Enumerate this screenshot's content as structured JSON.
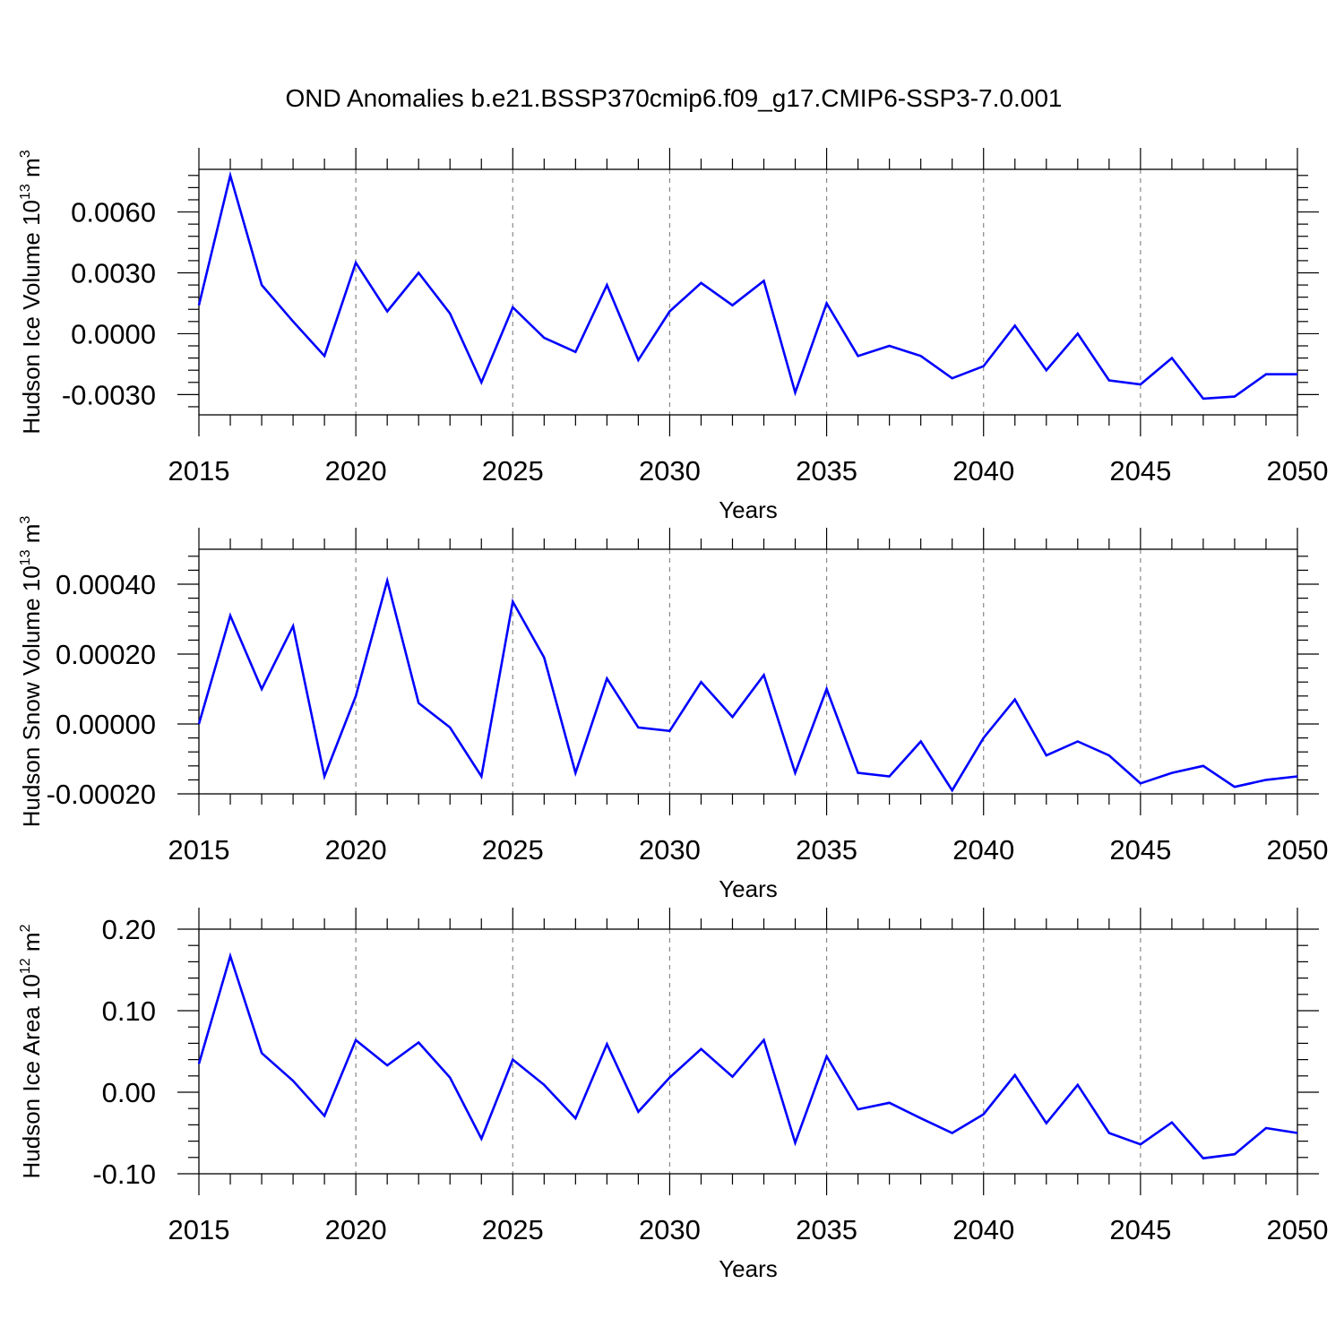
{
  "title": "OND Anomalies b.e21.BSSP370cmip6.f09_g17.CMIP6-SSP3-7.0.001",
  "line_color": "#0000ff",
  "chart_data": [
    {
      "type": "line",
      "xlabel": "Years",
      "ylabel": "Hudson Ice Volume 10",
      "ylabel_exp": "13",
      "ylabel_unit": " m",
      "ylabel_unit_exp": "3",
      "xlim": [
        2015,
        2050
      ],
      "ylim": [
        -0.004,
        0.0081
      ],
      "x_ticks": [
        "2015",
        "2020",
        "2025",
        "2030",
        "2035",
        "2040",
        "2045",
        "2050"
      ],
      "y_ticks": [
        {
          "value": 0.006,
          "label": "0.0060"
        },
        {
          "value": 0.003,
          "label": "0.0030"
        },
        {
          "value": 0.0,
          "label": "0.0000"
        },
        {
          "value": -0.003,
          "label": "-0.0030"
        }
      ],
      "grid": "vertical dashed at major x ticks",
      "x": [
        2015,
        2016,
        2017,
        2018,
        2019,
        2020,
        2021,
        2022,
        2023,
        2024,
        2025,
        2026,
        2027,
        2028,
        2029,
        2030,
        2031,
        2032,
        2033,
        2034,
        2035,
        2036,
        2037,
        2038,
        2039,
        2040,
        2041,
        2042,
        2043,
        2044,
        2045,
        2046,
        2047,
        2048,
        2049,
        2050
      ],
      "values": [
        0.0014,
        0.0078,
        0.0024,
        0.0006,
        -0.0011,
        0.0035,
        0.0011,
        0.003,
        0.001,
        -0.0024,
        0.0013,
        -0.0002,
        -0.0009,
        0.0024,
        -0.0013,
        0.0011,
        0.0025,
        0.0014,
        0.0026,
        -0.0029,
        0.0015,
        -0.0011,
        -0.0006,
        -0.0011,
        -0.0022,
        -0.0016,
        0.0004,
        -0.0018,
        0.0,
        -0.0023,
        -0.0025,
        -0.0012,
        -0.0032,
        -0.0031,
        -0.002,
        -0.002
      ]
    },
    {
      "type": "line",
      "xlabel": "Years",
      "ylabel": "Hudson Snow Volume 10",
      "ylabel_exp": "13",
      "ylabel_unit": " m",
      "ylabel_unit_exp": "3",
      "xlim": [
        2015,
        2050
      ],
      "ylim": [
        -0.0002,
        0.0005
      ],
      "x_ticks": [
        "2015",
        "2020",
        "2025",
        "2030",
        "2035",
        "2040",
        "2045",
        "2050"
      ],
      "y_ticks": [
        {
          "value": 0.0004,
          "label": "0.00040"
        },
        {
          "value": 0.0002,
          "label": "0.00020"
        },
        {
          "value": 0.0,
          "label": "0.00000"
        },
        {
          "value": -0.0002,
          "label": "-0.00020"
        }
      ],
      "grid": "vertical dashed at major x ticks",
      "x": [
        2015,
        2016,
        2017,
        2018,
        2019,
        2020,
        2021,
        2022,
        2023,
        2024,
        2025,
        2026,
        2027,
        2028,
        2029,
        2030,
        2031,
        2032,
        2033,
        2034,
        2035,
        2036,
        2037,
        2038,
        2039,
        2040,
        2041,
        2042,
        2043,
        2044,
        2045,
        2046,
        2047,
        2048,
        2049,
        2050
      ],
      "values": [
        0.0,
        0.00031,
        0.0001,
        0.00028,
        -0.00015,
        8e-05,
        0.00041,
        6e-05,
        -1e-05,
        -0.00015,
        0.00035,
        0.00019,
        -0.00014,
        0.00013,
        -1e-05,
        -2e-05,
        0.00012,
        2e-05,
        0.00014,
        -0.00014,
        0.0001,
        -0.00014,
        -0.00015,
        -5e-05,
        -0.00019,
        -4e-05,
        7e-05,
        -9e-05,
        -5e-05,
        -9e-05,
        -0.00017,
        -0.00014,
        -0.00012,
        -0.00018,
        -0.00016,
        -0.00015
      ]
    },
    {
      "type": "line",
      "xlabel": "Years",
      "ylabel": "Hudson Ice Area 10",
      "ylabel_exp": "12",
      "ylabel_unit": " m",
      "ylabel_unit_exp": "2",
      "xlim": [
        2015,
        2050
      ],
      "ylim": [
        -0.1,
        0.2
      ],
      "x_ticks": [
        "2015",
        "2020",
        "2025",
        "2030",
        "2035",
        "2040",
        "2045",
        "2050"
      ],
      "y_ticks": [
        {
          "value": 0.2,
          "label": "0.20"
        },
        {
          "value": 0.1,
          "label": "0.10"
        },
        {
          "value": 0.0,
          "label": "0.00"
        },
        {
          "value": -0.1,
          "label": "-0.10"
        }
      ],
      "grid": "vertical dashed at major x ticks",
      "x": [
        2015,
        2016,
        2017,
        2018,
        2019,
        2020,
        2021,
        2022,
        2023,
        2024,
        2025,
        2026,
        2027,
        2028,
        2029,
        2030,
        2031,
        2032,
        2033,
        2034,
        2035,
        2036,
        2037,
        2038,
        2039,
        2040,
        2041,
        2042,
        2043,
        2044,
        2045,
        2046,
        2047,
        2048,
        2049,
        2050
      ],
      "values": [
        0.035,
        0.167,
        0.048,
        0.014,
        -0.029,
        0.064,
        0.033,
        0.061,
        0.018,
        -0.057,
        0.04,
        0.009,
        -0.032,
        0.059,
        -0.024,
        0.018,
        0.053,
        0.019,
        0.064,
        -0.062,
        0.044,
        -0.021,
        -0.013,
        -0.032,
        -0.05,
        -0.027,
        0.021,
        -0.038,
        0.009,
        -0.05,
        -0.064,
        -0.037,
        -0.081,
        -0.076,
        -0.044,
        -0.05
      ]
    }
  ]
}
